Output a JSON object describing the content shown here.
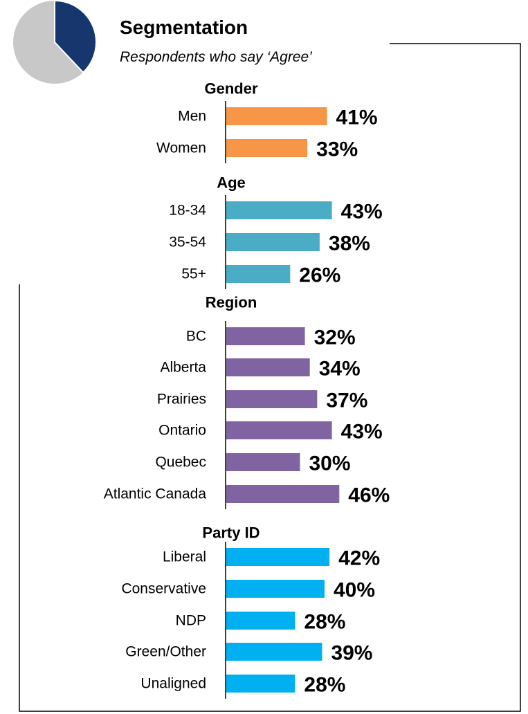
{
  "header": {
    "title": "Segmentation",
    "subtitle": "Respondents who say ‘Agree’"
  },
  "pie": {
    "agree_fraction": 0.38,
    "colors": {
      "agree": "#17366e",
      "other": "#c8c8c8"
    }
  },
  "chart_data": {
    "type": "bar",
    "orientation": "horizontal",
    "title": "Segmentation",
    "subtitle": "Respondents who say ‘Agree’",
    "unit": "%",
    "xlim": [
      0,
      100
    ],
    "grid": false,
    "groups": [
      {
        "name": "Gender",
        "color": "#f79646",
        "categories": [
          "Men",
          "Women"
        ],
        "values": [
          41,
          33
        ],
        "labels": [
          "41%",
          "33%"
        ]
      },
      {
        "name": "Age",
        "color": "#4bacc6",
        "categories": [
          "18-34",
          "35-54",
          "55+"
        ],
        "values": [
          43,
          38,
          26
        ],
        "labels": [
          "43%",
          "38%",
          "26%"
        ]
      },
      {
        "name": "Region",
        "color": "#8064a2",
        "categories": [
          "BC",
          "Alberta",
          "Prairies",
          "Ontario",
          "Quebec",
          "Atlantic Canada"
        ],
        "values": [
          32,
          34,
          37,
          43,
          30,
          46
        ],
        "labels": [
          "32%",
          "34%",
          "37%",
          "43%",
          "30%",
          "46%"
        ]
      },
      {
        "name": "Party ID",
        "color": "#00b0f0",
        "categories": [
          "Liberal",
          "Conservative",
          "NDP",
          "Green/Other",
          "Unaligned"
        ],
        "values": [
          42,
          40,
          28,
          39,
          28
        ],
        "labels": [
          "42%",
          "40%",
          "28%",
          "39%",
          "28%"
        ]
      }
    ]
  }
}
